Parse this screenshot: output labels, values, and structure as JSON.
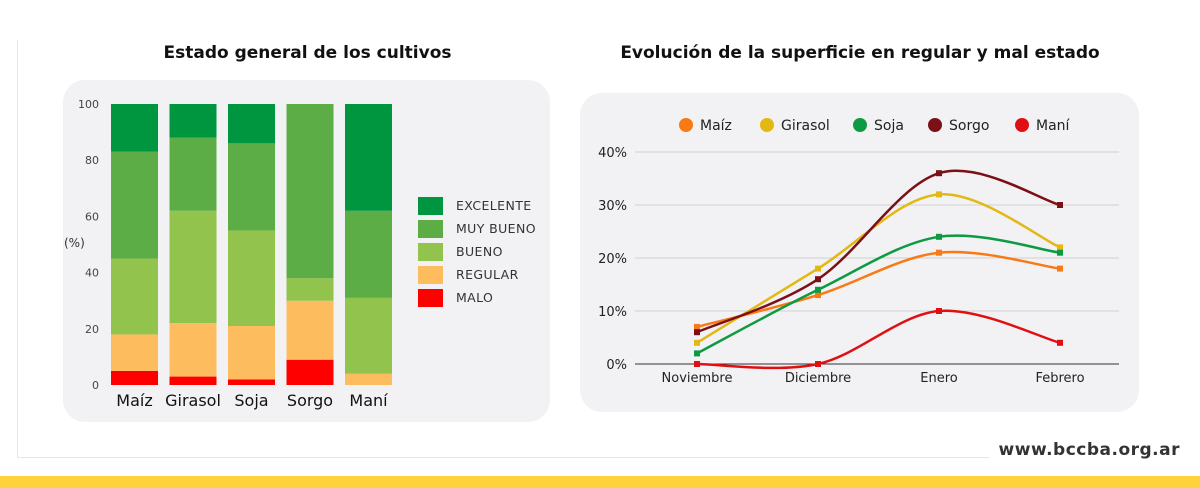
{
  "site": {
    "url": "www.bccba.org.ar"
  },
  "colors": {
    "excelente": "#00963f",
    "muy_bueno": "#5cad45",
    "bueno": "#92c34c",
    "regular": "#fdbd5e",
    "malo": "#ff0000",
    "maiz": "#f97a15",
    "girasol": "#e3b812",
    "soja": "#0d9a41",
    "sorgo": "#7b1016",
    "mani": "#e01012"
  },
  "chart_data": [
    {
      "type": "bar",
      "stacked": true,
      "title": "Estado general de los cultivos",
      "ylabel": "(%)",
      "xlabel": "",
      "ylim": [
        0,
        100
      ],
      "yticks": [
        "0",
        "20",
        "40",
        "60",
        "80",
        "100"
      ],
      "categories": [
        "Maíz",
        "Girasol",
        "Soja",
        "Sorgo",
        "Maní"
      ],
      "series": [
        {
          "name": "MALO",
          "values": [
            5,
            3,
            2,
            9,
            0
          ]
        },
        {
          "name": "REGULAR",
          "values": [
            13,
            19,
            19,
            21,
            4
          ]
        },
        {
          "name": "BUENO",
          "values": [
            27,
            40,
            34,
            8,
            27
          ]
        },
        {
          "name": "MUY BUENO",
          "values": [
            38,
            26,
            31,
            62,
            31
          ]
        },
        {
          "name": "EXCELENTE",
          "values": [
            17,
            12,
            14,
            0,
            38
          ]
        }
      ],
      "legend": [
        "EXCELENTE",
        "MUY BUENO",
        "BUENO",
        "REGULAR",
        "MALO"
      ],
      "legend_position": "right",
      "grid": false
    },
    {
      "type": "line",
      "title": "Evolución de la superficie en regular y mal estado",
      "xlabel": "",
      "ylabel": "",
      "x": [
        "Noviembre",
        "Diciembre",
        "Enero",
        "Febrero"
      ],
      "ylim": [
        0,
        40
      ],
      "yticks": [
        "0%",
        "10%",
        "20%",
        "30%",
        "40%"
      ],
      "series": [
        {
          "name": "Maíz",
          "values": [
            7,
            13,
            21,
            18
          ]
        },
        {
          "name": "Girasol",
          "values": [
            4,
            18,
            32,
            22
          ]
        },
        {
          "name": "Soja",
          "values": [
            2,
            14,
            24,
            21
          ]
        },
        {
          "name": "Sorgo",
          "values": [
            6,
            16,
            36,
            30
          ]
        },
        {
          "name": "Maní",
          "values": [
            0,
            0,
            10,
            4
          ]
        }
      ],
      "legend_position": "top",
      "grid": true
    }
  ]
}
